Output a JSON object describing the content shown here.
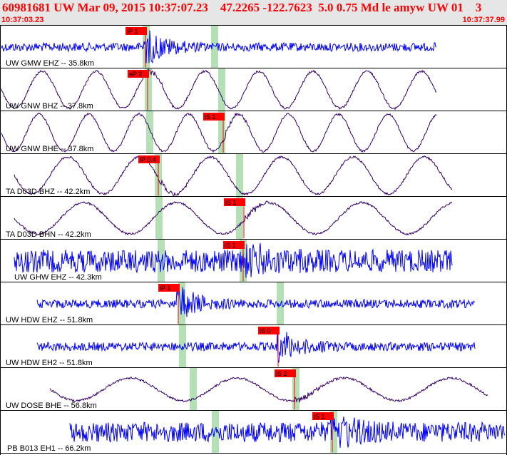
{
  "header": {
    "title": "60981681 UW Mar 09, 2015 10:37:07.23    47.2265 -122.7623  5.0 0.75 Md le amyw UW 01    3",
    "time_start": "10:37:03.23",
    "time_end": "10:37:37.99"
  },
  "colors": {
    "header_bg": "#e6e6e6",
    "header_text": "#ff0000",
    "trace_blue": "#0000ff",
    "trace_dark": "#330066",
    "pick_red": "#ff0000",
    "window_green": "#b5e0b5"
  },
  "chart_data": {
    "type": "line",
    "x_unit": "time",
    "x_range": [
      "10:37:03.23",
      "10:37:37.99"
    ],
    "traces": [
      {
        "label": "UW GMW EHZ -- 35.8km",
        "component": "EHZ",
        "waveform": "high-frequency",
        "color": "blue",
        "pick": {
          "label": "iP 1"
        },
        "green_windows": 2
      },
      {
        "label": "UW GNW BHZ -- 37.8km",
        "component": "BHZ",
        "waveform": "low-frequency",
        "color": "dark",
        "pick": {
          "label": "eP 2"
        },
        "green_windows": 2
      },
      {
        "label": "UW GNW BHE -- 37.8km",
        "component": "BHE",
        "waveform": "low-frequency",
        "color": "dark",
        "pick": {
          "label": "iS 1"
        },
        "green_windows": 2
      },
      {
        "label": "TA D03D BHZ -- 42.2km",
        "component": "BHZ",
        "waveform": "low-frequency",
        "color": "dark",
        "pick": {
          "label": "iP 0.4"
        },
        "green_windows": 2
      },
      {
        "label": "TA D03D BHN -- 42.2km",
        "component": "BHN",
        "waveform": "low-frequency",
        "color": "dark",
        "pick": {
          "label": "iS 1"
        },
        "green_windows": 2
      },
      {
        "label": "UW GHW EHZ -- 42.3km",
        "component": "EHZ",
        "waveform": "high-frequency",
        "color": "blue",
        "pick": {
          "label": "iS 1"
        },
        "green_windows": 2
      },
      {
        "label": "UW HDW EHZ -- 51.8km",
        "component": "EHZ",
        "waveform": "high-frequency",
        "color": "blue",
        "pick": {
          "label": "iP 1"
        },
        "green_windows": 2
      },
      {
        "label": "UW HDW EH2 -- 51.8km",
        "component": "EH2",
        "waveform": "high-frequency",
        "color": "blue",
        "pick": {
          "label": "iS 0"
        },
        "green_windows": 1
      },
      {
        "label": "UW DOSE BHE -- 56.8km",
        "component": "BHE",
        "waveform": "low-frequency",
        "color": "dark",
        "pick": {
          "label": "iS 2"
        },
        "green_windows": 2
      },
      {
        "label": "PB B013 EH1 -- 66.2km",
        "component": "EH1",
        "waveform": "high-frequency",
        "color": "blue",
        "pick": {
          "label": "iS 1"
        },
        "green_windows": 1
      }
    ]
  }
}
